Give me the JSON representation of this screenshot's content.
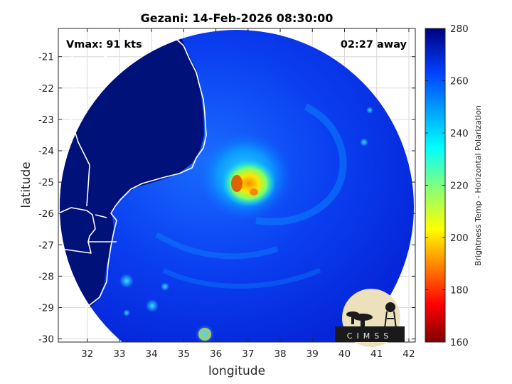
{
  "title": "Gezani: 14-Feb-2026 08:30:00",
  "annotations": {
    "vmax": "Vmax: 91 kts",
    "eta": "02:27 away"
  },
  "axes": {
    "xlabel": "longitude",
    "ylabel": "latitude",
    "x_ticks": [
      "32",
      "33",
      "34",
      "35",
      "36",
      "37",
      "38",
      "39",
      "40",
      "41",
      "42"
    ],
    "y_ticks": [
      "-21",
      "-22",
      "-23",
      "-24",
      "-25",
      "-26",
      "-27",
      "-28",
      "-29",
      "-30"
    ],
    "x_range": [
      31.1,
      42.2
    ],
    "y_range": [
      -30.1,
      -20.1
    ],
    "grid": true
  },
  "colorbar": {
    "label": "Brightness Temp - Horizontal Polarization",
    "ticks": [
      "280",
      "260",
      "240",
      "220",
      "200",
      "180",
      "160"
    ],
    "range": [
      160,
      280
    ],
    "colormap": "jet"
  },
  "logo": {
    "text": "CIMSS"
  }
}
